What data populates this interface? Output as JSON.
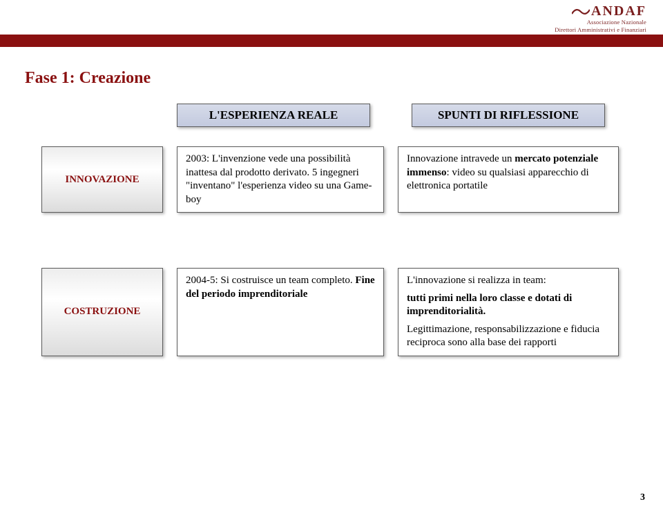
{
  "logo": {
    "main": "ANDAF",
    "sub1": "Associazione Nazionale",
    "sub2": "Direttori Amministrativi e Finanziari"
  },
  "title": "Fase 1: Creazione",
  "headers": {
    "esperienza": "L'ESPERIENZA REALE",
    "spunti": "SPUNTI DI RIFLESSIONE"
  },
  "rows": [
    {
      "label": "INNOVAZIONE",
      "mid_html": "2003: L'invenzione vede una possibilità inattesa dal prodotto derivato. 5 ingegneri \"inventano\" l'esperienza video su una Game-boy",
      "right_html": "Innovazione intravede un <b>mercato potenziale immenso</b>: video su qualsiasi apparecchio di elettronica portatile"
    },
    {
      "label": "COSTRUZIONE",
      "mid_html": "2004-5: Si costruisce un team completo. <b>Fine del periodo imprenditoriale</b>",
      "right_html": "<p>L'innovazione si realizza in team:</p><p><b>tutti primi nella loro classe e dotati di imprenditorialità.</b></p><p>Legittimazione, responsabilizzazione  e fiducia reciproca sono alla base dei rapporti</p>"
    }
  ],
  "page": "3",
  "colors": {
    "brand_red": "#8a1010",
    "logo_red": "#7a1e1e",
    "header_grad_top": "#d6dbe9",
    "header_grad_bot": "#c3cadf",
    "label_grad_top": "#ededed",
    "label_grad_bot": "#dcdcdc",
    "border": "#5b5b5b"
  }
}
